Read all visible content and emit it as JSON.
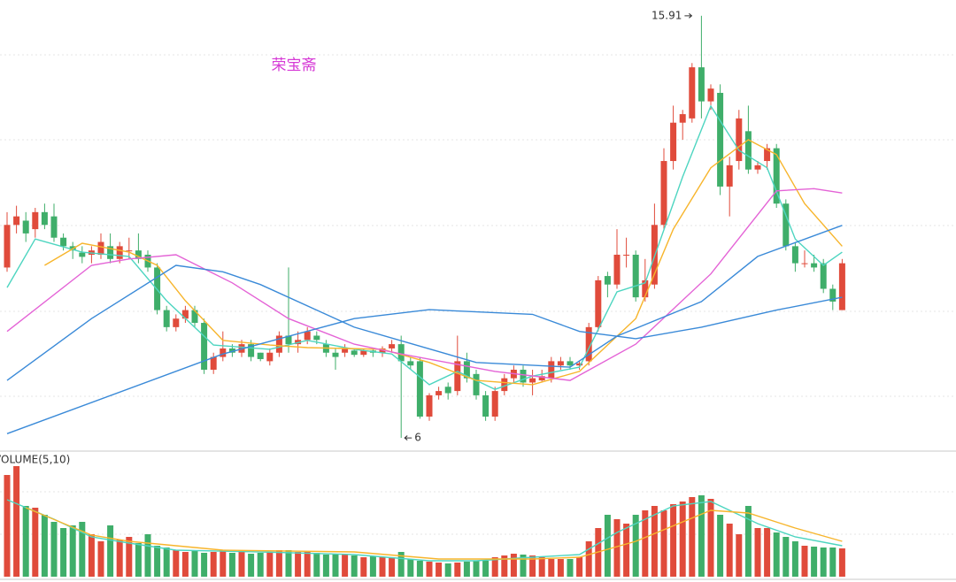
{
  "chart_data": [
    {
      "type": "candlestick",
      "title": "荣宝斋",
      "title_color": "#d63ad6",
      "colors": {
        "up": "#e04b3b",
        "down": "#3fae6a"
      },
      "ylim": [
        5.69,
        16.28
      ],
      "open": [
        10.0,
        11.0,
        11.1,
        10.9,
        11.3,
        11.2,
        10.7,
        10.5,
        10.35,
        10.3,
        10.3,
        10.5,
        10.2,
        10.4,
        10.4,
        10.3,
        10.0,
        9.0,
        8.6,
        8.8,
        9.0,
        8.7,
        7.6,
        7.9,
        8.1,
        8.0,
        8.2,
        8.0,
        7.8,
        8.0,
        8.4,
        8.2,
        8.3,
        8.4,
        8.2,
        8.0,
        8.0,
        8.05,
        7.95,
        8.05,
        8.0,
        8.1,
        8.2,
        7.8,
        7.8,
        6.5,
        7.0,
        7.2,
        7.1,
        7.8,
        7.5,
        7.0,
        6.5,
        7.1,
        7.4,
        7.6,
        7.3,
        7.35,
        7.4,
        7.7,
        7.8,
        7.7,
        7.8,
        8.6,
        9.8,
        9.6,
        10.3,
        10.3,
        9.3,
        9.6,
        11.0,
        12.5,
        13.4,
        13.5,
        14.7,
        13.9,
        14.1,
        11.9,
        12.5,
        13.2,
        12.3,
        12.5,
        12.8,
        11.5,
        10.5,
        10.1,
        10.1,
        10.1,
        9.5,
        9.0
      ],
      "high": [
        11.3,
        11.45,
        11.3,
        11.4,
        11.5,
        11.5,
        10.8,
        10.6,
        10.5,
        10.5,
        10.8,
        10.8,
        10.6,
        10.7,
        10.8,
        10.4,
        10.1,
        9.1,
        8.9,
        9.1,
        9.1,
        8.8,
        8.0,
        8.5,
        8.2,
        8.3,
        8.3,
        8.0,
        8.1,
        8.5,
        10.0,
        8.5,
        8.6,
        8.5,
        8.3,
        8.1,
        8.2,
        8.1,
        8.1,
        8.1,
        8.15,
        8.3,
        8.4,
        7.9,
        7.9,
        7.05,
        7.2,
        7.3,
        8.4,
        8.0,
        7.6,
        7.1,
        7.2,
        7.5,
        7.7,
        7.7,
        7.6,
        7.6,
        7.9,
        7.9,
        7.9,
        7.8,
        8.7,
        9.8,
        9.9,
        10.9,
        10.7,
        10.4,
        10.2,
        11.5,
        12.8,
        13.8,
        13.7,
        14.8,
        15.91,
        14.3,
        14.3,
        12.6,
        13.7,
        13.8,
        12.5,
        12.9,
        12.9,
        11.6,
        10.6,
        10.4,
        10.3,
        10.2,
        9.6,
        10.2
      ],
      "low": [
        9.9,
        10.8,
        10.6,
        10.7,
        10.9,
        10.6,
        10.4,
        10.2,
        10.1,
        10.1,
        10.2,
        10.1,
        10.1,
        10.2,
        10.1,
        9.9,
        8.9,
        8.5,
        8.5,
        8.7,
        8.6,
        7.5,
        7.5,
        7.8,
        7.9,
        7.9,
        7.8,
        7.8,
        7.7,
        7.9,
        8.0,
        8.0,
        8.2,
        8.2,
        7.9,
        7.6,
        7.9,
        7.9,
        7.9,
        7.9,
        7.9,
        8.0,
        6.0,
        7.6,
        6.45,
        6.4,
        6.9,
        6.9,
        7.0,
        7.3,
        6.9,
        6.4,
        6.4,
        7.0,
        7.3,
        7.2,
        7.0,
        7.3,
        7.3,
        7.6,
        7.6,
        7.6,
        7.7,
        8.5,
        9.3,
        9.5,
        10.0,
        9.2,
        9.2,
        9.5,
        10.9,
        12.3,
        13.0,
        13.4,
        13.5,
        13.7,
        11.7,
        11.2,
        12.3,
        12.2,
        12.2,
        12.3,
        11.4,
        10.4,
        9.9,
        10.0,
        9.9,
        9.4,
        9.0,
        9.0
      ],
      "close": [
        11.0,
        11.2,
        10.8,
        11.3,
        11.0,
        10.7,
        10.5,
        10.4,
        10.25,
        10.4,
        10.6,
        10.2,
        10.5,
        10.4,
        10.2,
        10.0,
        9.0,
        8.6,
        8.8,
        9.0,
        8.7,
        7.6,
        7.9,
        8.1,
        8.0,
        8.2,
        7.9,
        7.85,
        8.0,
        8.4,
        8.2,
        8.3,
        8.5,
        8.3,
        8.0,
        7.9,
        8.1,
        7.95,
        8.05,
        8.0,
        8.1,
        8.2,
        7.8,
        7.7,
        6.5,
        7.0,
        7.1,
        7.05,
        7.8,
        7.4,
        7.0,
        6.5,
        7.1,
        7.4,
        7.6,
        7.3,
        7.4,
        7.45,
        7.8,
        7.8,
        7.7,
        7.75,
        8.6,
        9.7,
        9.6,
        10.3,
        10.3,
        9.3,
        9.7,
        11.0,
        12.5,
        13.4,
        13.6,
        14.7,
        13.9,
        14.2,
        11.9,
        12.4,
        13.5,
        12.3,
        12.4,
        12.8,
        11.5,
        10.5,
        10.1,
        10.1,
        10.0,
        9.5,
        9.2,
        10.1
      ],
      "high_label": "15.91",
      "low_label": "6",
      "lines": [
        {
          "color": "#4dd5c0",
          "x": [
            0,
            3,
            8,
            13,
            17,
            22,
            28,
            32,
            37,
            41,
            45,
            48,
            52,
            56,
            61,
            65,
            68,
            72,
            75,
            78,
            81,
            84,
            87,
            89
          ],
          "values": [
            9.53,
            10.67,
            10.36,
            10.26,
            9.22,
            8.18,
            8.08,
            8.29,
            8.08,
            7.97,
            7.25,
            7.56,
            7.14,
            7.45,
            7.66,
            9.43,
            9.64,
            12.13,
            13.79,
            12.75,
            12.34,
            10.67,
            10.05,
            10.36
          ]
        },
        {
          "color": "#f7b52c",
          "x": [
            4,
            8,
            13,
            16,
            19,
            23,
            28,
            32,
            40,
            45,
            50,
            56,
            61,
            67,
            71,
            75,
            79,
            82,
            85,
            89
          ],
          "values": [
            10.05,
            10.57,
            10.36,
            10.05,
            9.22,
            8.29,
            8.18,
            8.12,
            8.08,
            7.77,
            7.35,
            7.25,
            7.56,
            8.8,
            10.9,
            12.34,
            13.0,
            12.65,
            11.5,
            10.5
          ]
        },
        {
          "color": "#e463d6",
          "x": [
            0,
            9,
            13,
            18,
            24,
            30,
            37,
            42,
            52,
            60,
            67,
            75,
            82,
            86,
            89
          ],
          "values": [
            8.5,
            10.05,
            10.2,
            10.3,
            9.64,
            8.8,
            8.2,
            7.97,
            7.56,
            7.35,
            8.2,
            9.85,
            11.8,
            11.85,
            11.75
          ]
        },
        {
          "color": "#3a8ad8",
          "x": [
            0,
            9,
            18,
            23,
            27,
            37,
            50,
            60,
            65,
            74,
            80,
            89
          ],
          "values": [
            7.35,
            8.8,
            10.05,
            9.9,
            9.6,
            8.6,
            7.77,
            7.66,
            8.39,
            9.2,
            10.26,
            10.99
          ]
        },
        {
          "color": "#3a8ad8",
          "x": [
            0,
            23,
            37,
            45,
            56,
            61,
            67,
            74,
            82,
            89
          ],
          "values": [
            6.1,
            7.97,
            8.8,
            9.01,
            8.9,
            8.5,
            8.33,
            8.6,
            9.0,
            9.3
          ]
        }
      ]
    },
    {
      "type": "bar",
      "title": "VOLUME(5,10)",
      "ylim": [
        0,
        130
      ],
      "values": [
        115,
        125,
        80,
        78,
        70,
        62,
        55,
        58,
        62,
        48,
        40,
        58,
        42,
        45,
        38,
        48,
        35,
        33,
        30,
        28,
        30,
        27,
        28,
        30,
        27,
        30,
        26,
        27,
        28,
        30,
        30,
        28,
        28,
        27,
        25,
        25,
        25,
        24,
        22,
        23,
        22,
        22,
        28,
        20,
        18,
        17,
        16,
        15,
        16,
        17,
        18,
        18,
        22,
        24,
        26,
        25,
        24,
        22,
        20,
        20,
        20,
        22,
        40,
        55,
        70,
        65,
        60,
        70,
        75,
        80,
        75,
        82,
        85,
        90,
        92,
        88,
        70,
        60,
        48,
        80,
        55,
        55,
        50,
        45,
        40,
        35,
        34,
        33,
        33,
        32
      ],
      "lines": [
        {
          "color": "#4dd5c0",
          "x": [
            0,
            5,
            9,
            13,
            18,
            27,
            37,
            45,
            50,
            56,
            61,
            65,
            71,
            75,
            80,
            84,
            89
          ],
          "values": [
            87,
            65,
            45,
            38,
            30,
            28,
            25,
            18,
            18,
            22,
            25,
            50,
            80,
            85,
            60,
            45,
            35
          ]
        },
        {
          "color": "#f7b52c",
          "x": [
            2,
            9,
            13,
            23,
            37,
            46,
            56,
            61,
            67,
            75,
            79,
            84,
            89
          ],
          "values": [
            78,
            47,
            40,
            30,
            28,
            20,
            20,
            22,
            40,
            75,
            72,
            55,
            40
          ]
        }
      ]
    }
  ]
}
